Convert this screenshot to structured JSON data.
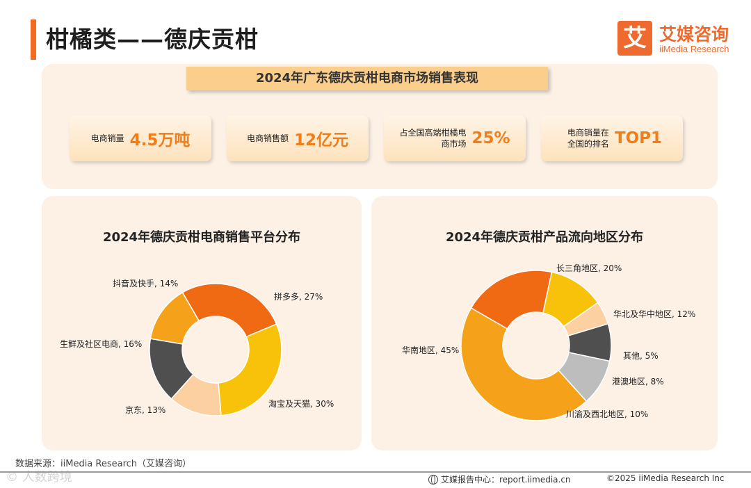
{
  "page": {
    "title": "柑橘类——德庆贡柑"
  },
  "logo": {
    "mark": "艾",
    "cn": "艾媒咨询",
    "en": "iiMedia Research"
  },
  "banner": {
    "title": "2024年广东德庆贡柑电商市场销售表现"
  },
  "stats": [
    {
      "label": "电商销量",
      "value": "4.5万吨"
    },
    {
      "label": "电商销售额",
      "value": "12亿元"
    },
    {
      "label": "占全国高端柑橘电商市场",
      "value": "25%"
    },
    {
      "label": "电商销量在全国的排名",
      "value": "TOP1"
    }
  ],
  "chart_data": [
    {
      "type": "pie",
      "style": "donut",
      "title": "2024年德庆贡柑电商销售平台分布",
      "unit": "%",
      "categories": [
        "拼多多",
        "淘宝及天猫",
        "京东",
        "生鲜及社区电商",
        "抖音及快手"
      ],
      "values": [
        27,
        30,
        13,
        16,
        14
      ],
      "labels": [
        "拼多多, 27%",
        "淘宝及天猫, 30%",
        "京东, 13%",
        "生鲜及社区电商, 16%",
        "抖音及快手, 14%"
      ],
      "colors": [
        "#f06a14",
        "#f8c20a",
        "#fcd0a0",
        "#4f4f4f",
        "#f5a21a"
      ]
    },
    {
      "type": "pie",
      "style": "donut",
      "title": "2024年德庆贡柑产品流向地区分布",
      "unit": "%",
      "categories": [
        "长三角地区",
        "华北及华中地区",
        "其他",
        "港澳地区",
        "川渝及西北地区",
        "华南地区"
      ],
      "values": [
        20,
        12,
        5,
        8,
        10,
        45
      ],
      "labels": [
        "长三角地区, 20%",
        "华北及华中地区, 12%",
        "其他, 5%",
        "港澳地区, 8%",
        "川渝及西北地区, 10%",
        "华南地区, 45%"
      ],
      "colors": [
        "#f06a14",
        "#f8c20a",
        "#fcd0a0",
        "#4f4f4f",
        "#bdbdbd",
        "#f5a21a"
      ]
    }
  ],
  "footer": {
    "source": "数据来源：iiMedia Research（艾媒咨询）",
    "watermark": "© 人数跨境",
    "center": "艾媒报告中心：report.iimedia.cn",
    "copyright": "©2025  iiMedia Research  Inc"
  }
}
